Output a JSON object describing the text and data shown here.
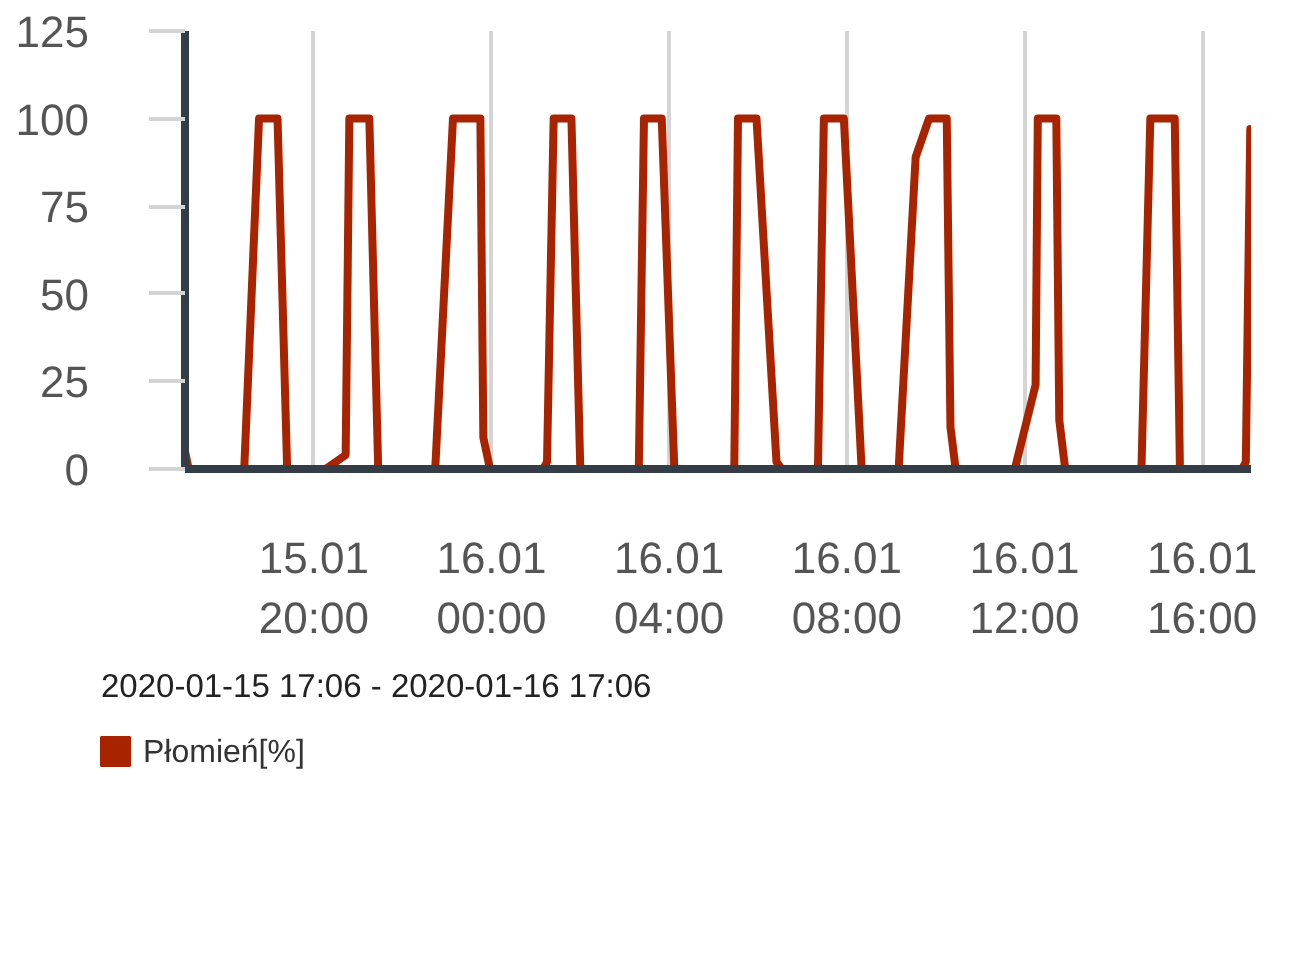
{
  "chart_data": {
    "type": "line",
    "annotations": [
      "2020-01-15 17:06 - 2020-01-16 17:06"
    ],
    "x": [
      "2020-01-15T17:06",
      "2020-01-15T17:11",
      "2020-01-15T18:26",
      "2020-01-15T18:46",
      "2020-01-15T19:11",
      "2020-01-15T19:24",
      "2020-01-15T20:16",
      "2020-01-15T20:43",
      "2020-01-15T20:48",
      "2020-01-15T21:15",
      "2020-01-15T21:27",
      "2020-01-15T22:44",
      "2020-01-15T23:08",
      "2020-01-15T23:45",
      "2020-01-15T23:49",
      "2020-01-15T23:58",
      "2020-01-16T01:10",
      "2020-01-16T01:15",
      "2020-01-16T01:24",
      "2020-01-16T01:48",
      "2020-01-16T02:00",
      "2020-01-16T03:19",
      "2020-01-16T03:26",
      "2020-01-16T03:50",
      "2020-01-16T04:07",
      "2020-01-16T05:28",
      "2020-01-16T05:33",
      "2020-01-16T05:58",
      "2020-01-16T06:25",
      "2020-01-16T06:32",
      "2020-01-16T07:21",
      "2020-01-16T07:29",
      "2020-01-16T07:56",
      "2020-01-16T08:20",
      "2020-01-16T09:10",
      "2020-01-16T09:33",
      "2020-01-16T09:51",
      "2020-01-16T10:15",
      "2020-01-16T10:20",
      "2020-01-16T10:27",
      "2020-01-16T11:47",
      "2020-01-16T12:15",
      "2020-01-16T12:18",
      "2020-01-16T12:43",
      "2020-01-16T12:47",
      "2020-01-16T12:55",
      "2020-01-16T14:38",
      "2020-01-16T14:50",
      "2020-01-16T15:23",
      "2020-01-16T15:30",
      "2020-01-16T16:54",
      "2020-01-16T16:59",
      "2020-01-16T17:05"
    ],
    "series": [
      {
        "name": "Płomień[%]",
        "color": "#a82400",
        "values": [
          5,
          0,
          0,
          100,
          100,
          0,
          0,
          4,
          100,
          100,
          0,
          0,
          100,
          100,
          9,
          0,
          0,
          2,
          100,
          100,
          0,
          0,
          100,
          100,
          0,
          0,
          100,
          100,
          2,
          0,
          0,
          100,
          100,
          0,
          0,
          89,
          100,
          100,
          12,
          0,
          0,
          24,
          100,
          100,
          14,
          0,
          0,
          100,
          100,
          0,
          0,
          2,
          97
        ]
      }
    ],
    "xlim": [
      "2020-01-15T17:06",
      "2020-01-16T17:06"
    ],
    "xticks": [
      {
        "value": "2020-01-15T20:00",
        "label": "15.01\n20:00"
      },
      {
        "value": "2020-01-16T00:00",
        "label": "16.01\n00:00"
      },
      {
        "value": "2020-01-16T04:00",
        "label": "16.01\n04:00"
      },
      {
        "value": "2020-01-16T08:00",
        "label": "16.01\n08:00"
      },
      {
        "value": "2020-01-16T12:00",
        "label": "16.01\n12:00"
      },
      {
        "value": "2020-01-16T16:00",
        "label": "16.01\n16:00"
      }
    ],
    "ylim": [
      0,
      125
    ],
    "yticks": [
      0,
      25,
      50,
      75,
      100,
      125
    ],
    "grid": "x",
    "legend": "bottom",
    "line_style": "solid"
  }
}
